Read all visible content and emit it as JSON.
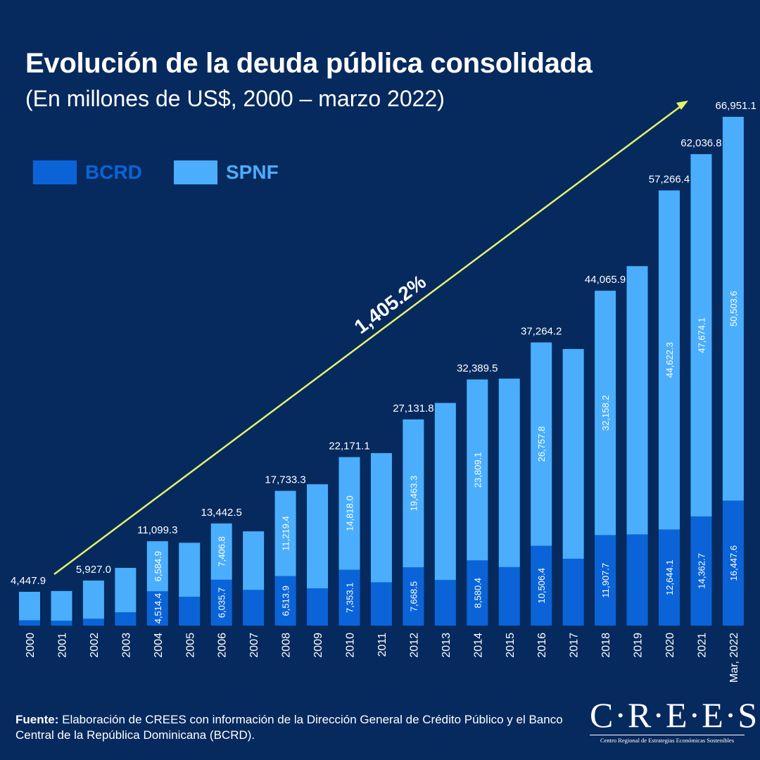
{
  "title": "Evolución de la deuda pública consolidada",
  "subtitle": "(En millones de US$, 2000 – marzo 2022)",
  "legend": [
    {
      "label": "BCRD",
      "color": "#0a64d8"
    },
    {
      "label": "SPNF",
      "color": "#4aaefc"
    }
  ],
  "growth_label": "1,405.2%",
  "footer": {
    "bold": "Fuente:",
    "text": " Elaboración de CREES con información de la Dirección General de Crédito Público y el Banco Central de la República Dominicana (BCRD)."
  },
  "logo": {
    "main": "C·R·E·E·S",
    "sub": "Centro Regional de Estrategias Económicas Sostenibles"
  },
  "colors": {
    "background": "#062a5e",
    "bcrd": "#0a64d8",
    "spnf": "#4aaefc",
    "arrow": "#e4f26a"
  },
  "chart_data": {
    "type": "bar",
    "stacked": true,
    "categories": [
      "2000",
      "2001",
      "2002",
      "2003",
      "2004",
      "2005",
      "2006",
      "2007",
      "2008",
      "2009",
      "2010",
      "2011",
      "2012",
      "2013",
      "2014",
      "2015",
      "2016",
      "2017",
      "2018",
      "2019",
      "2020",
      "2021",
      "Mar, 2022"
    ],
    "series": [
      {
        "name": "BCRD",
        "values": [
          700,
          650,
          900,
          1750,
          4514.4,
          3800,
          6035.7,
          4700,
          6513.9,
          4900,
          7353.1,
          5700,
          7668.5,
          6000,
          8580.4,
          7700,
          10506.4,
          8800,
          11907.7,
          12000,
          12644.1,
          14362.7,
          16447.6
        ]
      },
      {
        "name": "SPNF",
        "values": [
          3747.9,
          3900,
          5027.0,
          5850,
          6584.9,
          7100,
          7406.8,
          7700,
          11219.4,
          13700,
          14818.0,
          17000,
          19463.3,
          23300,
          23809.1,
          24800,
          26757.8,
          27600,
          32158.2,
          35300,
          44622.3,
          47674.1,
          50503.6
        ]
      }
    ],
    "totals": [
      4447.9,
      null,
      5927.0,
      null,
      11099.3,
      null,
      13442.5,
      null,
      17733.3,
      null,
      22171.1,
      null,
      27131.8,
      null,
      32389.5,
      null,
      37264.2,
      null,
      44065.9,
      null,
      57266.4,
      62036.8,
      66951.1
    ],
    "segment_labels": {
      "BCRD": [
        null,
        null,
        null,
        null,
        "4,514.4",
        null,
        "6,035.7",
        null,
        "6,513.9",
        null,
        "7,353.1",
        null,
        "7,668.5",
        null,
        "8,580.4",
        null,
        "10,506.4",
        null,
        "11,907.7",
        null,
        "12,644.1",
        "14,362.7",
        "16,447.6"
      ],
      "SPNF": [
        null,
        null,
        null,
        null,
        "6,584.9",
        null,
        "7,406.8",
        null,
        "11,219.4",
        null,
        "14,818.0",
        null,
        "19,463.3",
        null,
        "23,809.1",
        null,
        "26,757.8",
        null,
        "32,158.2",
        null,
        "44,622.3",
        "47,674.1",
        "50,503.6"
      ]
    },
    "total_labels": [
      "4,447.9",
      null,
      "5,927.0",
      null,
      "11,099.3",
      null,
      "13,442.5",
      null,
      "17,733.3",
      null,
      "22,171.1",
      null,
      "27,131.8",
      null,
      "32,389.5",
      null,
      "37,264.2",
      null,
      "44,065.9",
      null,
      "57,266.4",
      "62,036.8",
      "66,951.1"
    ],
    "ylim": [
      0,
      70000
    ],
    "grid": false,
    "legend_position": "top-left",
    "xlabel": "",
    "ylabel": ""
  }
}
